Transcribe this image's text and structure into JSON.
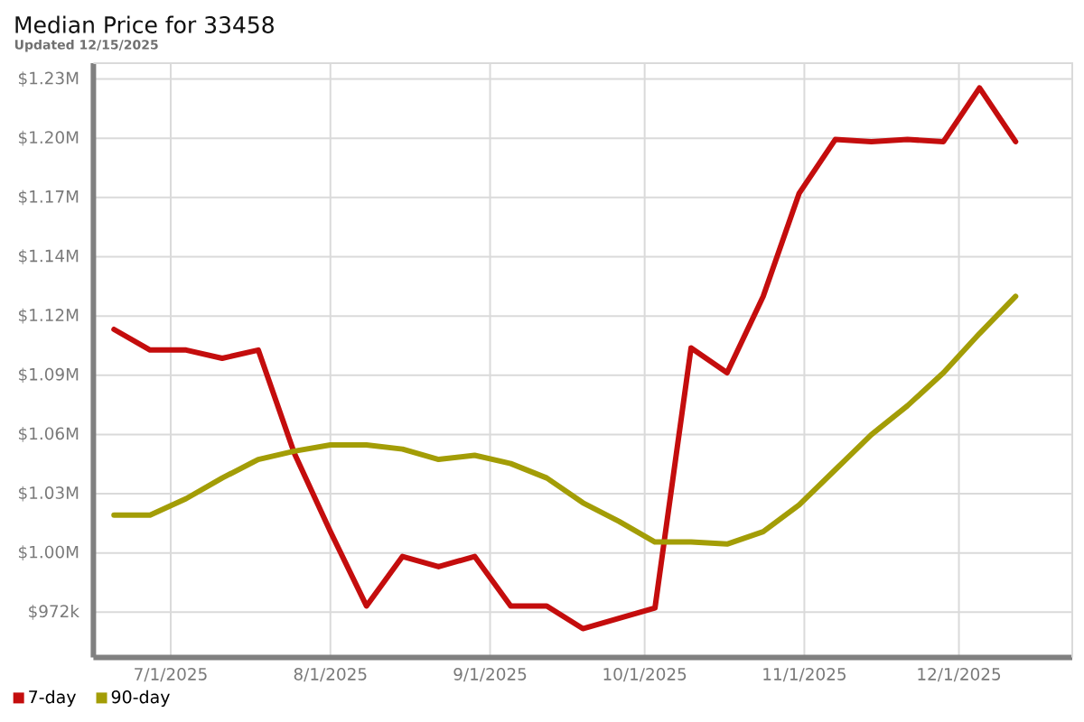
{
  "chart_data": {
    "type": "line",
    "title": "Median Price for 33458",
    "subtitle": "Updated 12/15/2025",
    "x": [
      "2025-06-20",
      "2025-06-27",
      "2025-07-04",
      "2025-07-11",
      "2025-07-18",
      "2025-07-25",
      "2025-08-01",
      "2025-08-08",
      "2025-08-15",
      "2025-08-22",
      "2025-08-29",
      "2025-09-05",
      "2025-09-12",
      "2025-09-19",
      "2025-09-26",
      "2025-10-03",
      "2025-10-10",
      "2025-10-17",
      "2025-10-24",
      "2025-10-31",
      "2025-11-07",
      "2025-11-14",
      "2025-11-21",
      "2025-11-28",
      "2025-12-05",
      "2025-12-12"
    ],
    "series": [
      {
        "name": "7-day",
        "color": "#c40d0d",
        "values": [
          1109000,
          1099000,
          1099000,
          1095000,
          1099000,
          1049000,
          1011000,
          975000,
          999000,
          994000,
          999000,
          975000,
          975000,
          964000,
          969000,
          974000,
          1100000,
          1088000,
          1125000,
          1175000,
          1201000,
          1200000,
          1201000,
          1200000,
          1226000,
          1200000
        ]
      },
      {
        "name": "90-day",
        "color": "#a39d06",
        "values": [
          1019000,
          1019000,
          1027000,
          1037000,
          1046000,
          1050000,
          1053000,
          1053000,
          1051000,
          1046000,
          1048000,
          1044000,
          1037000,
          1025000,
          1016000,
          1006000,
          1006000,
          1005000,
          1011000,
          1024000,
          1041000,
          1058000,
          1072000,
          1088000,
          1107000,
          1125000
        ]
      }
    ],
    "xlim": [
      "2025-06-16",
      "2025-12-23"
    ],
    "xticks": [
      {
        "value": "2025-07-01",
        "label": "7/1/2025"
      },
      {
        "value": "2025-08-01",
        "label": "8/1/2025"
      },
      {
        "value": "2025-09-01",
        "label": "9/1/2025"
      },
      {
        "value": "2025-10-01",
        "label": "10/1/2025"
      },
      {
        "value": "2025-11-01",
        "label": "11/1/2025"
      },
      {
        "value": "2025-12-01",
        "label": "12/1/2025"
      }
    ],
    "ylim": [
      950000,
      1238000
    ],
    "yticks": [
      {
        "value": 972000,
        "label": "$972k"
      },
      {
        "value": 1000700,
        "label": "$1.00M"
      },
      {
        "value": 1029400,
        "label": "$1.03M"
      },
      {
        "value": 1058100,
        "label": "$1.06M"
      },
      {
        "value": 1086800,
        "label": "$1.09M"
      },
      {
        "value": 1115500,
        "label": "$1.12M"
      },
      {
        "value": 1144200,
        "label": "$1.14M"
      },
      {
        "value": 1172900,
        "label": "$1.17M"
      },
      {
        "value": 1201600,
        "label": "$1.20M"
      },
      {
        "value": 1230300,
        "label": "$1.23M"
      }
    ],
    "grid": true,
    "legend": "bottom left"
  }
}
